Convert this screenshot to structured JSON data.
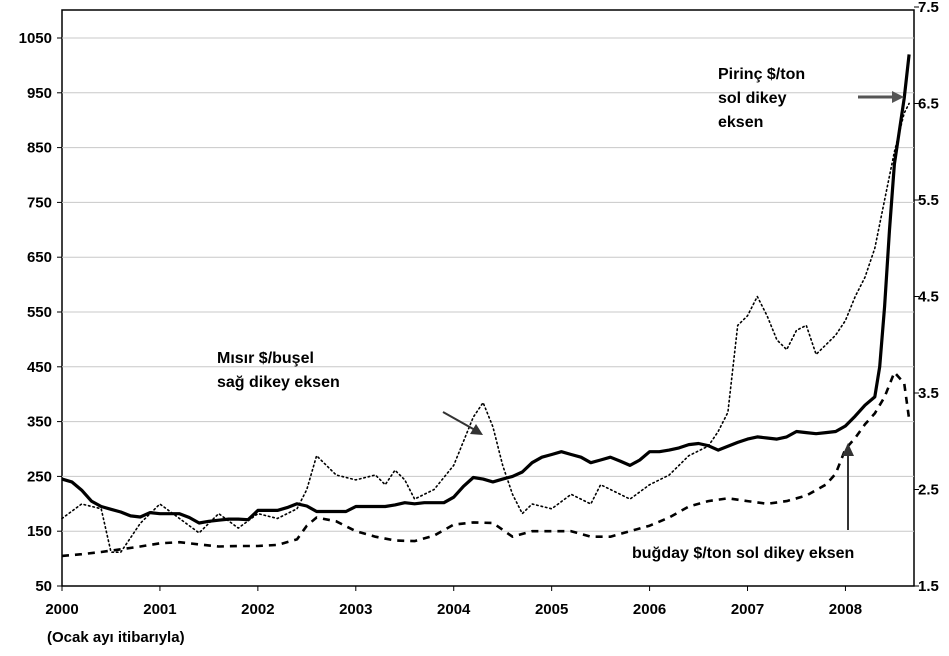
{
  "chart_data": {
    "type": "line",
    "x_axis": {
      "ticks": [
        "2000",
        "2001",
        "2002",
        "2003",
        "2004",
        "2005",
        "2006",
        "2007",
        "2008"
      ],
      "note": "(Ocak ayı itibarıyla)",
      "range": [
        2000.0,
        2008.7
      ]
    },
    "y_left": {
      "ticks": [
        50,
        150,
        250,
        350,
        450,
        550,
        650,
        750,
        850,
        950,
        1050
      ],
      "range": [
        50,
        1150
      ]
    },
    "y_right": {
      "ticks": [
        1.5,
        2.5,
        3.5,
        4.5,
        5.5,
        6.5,
        7.5
      ],
      "range": [
        1.5,
        7.5
      ]
    },
    "grid": true,
    "series": [
      {
        "key": "rice",
        "axis": "left",
        "style": "solid",
        "color": "#000000",
        "x": [
          2000.0,
          2000.1,
          2000.2,
          2000.3,
          2000.4,
          2000.5,
          2000.6,
          2000.7,
          2000.8,
          2000.9,
          2001.0,
          2001.1,
          2001.2,
          2001.3,
          2001.4,
          2001.5,
          2001.6,
          2001.7,
          2001.8,
          2001.9,
          2002.0,
          2002.1,
          2002.2,
          2002.3,
          2002.4,
          2002.5,
          2002.6,
          2002.7,
          2002.8,
          2002.9,
          2003.0,
          2003.1,
          2003.2,
          2003.3,
          2003.4,
          2003.5,
          2003.6,
          2003.7,
          2003.8,
          2003.9,
          2004.0,
          2004.1,
          2004.2,
          2004.3,
          2004.4,
          2004.5,
          2004.6,
          2004.7,
          2004.8,
          2004.9,
          2005.0,
          2005.1,
          2005.2,
          2005.3,
          2005.4,
          2005.5,
          2005.6,
          2005.7,
          2005.8,
          2005.9,
          2006.0,
          2006.1,
          2006.2,
          2006.3,
          2006.4,
          2006.5,
          2006.6,
          2006.7,
          2006.8,
          2006.9,
          2007.0,
          2007.1,
          2007.2,
          2007.3,
          2007.4,
          2007.5,
          2007.6,
          2007.7,
          2007.8,
          2007.9,
          2008.0,
          2008.1,
          2008.2,
          2008.3,
          2008.35,
          2008.4,
          2008.45,
          2008.5,
          2008.55,
          2008.6,
          2008.65
        ],
        "values": [
          245,
          240,
          225,
          205,
          195,
          190,
          185,
          178,
          176,
          184,
          182,
          182,
          182,
          175,
          165,
          168,
          170,
          172,
          172,
          171,
          188,
          188,
          188,
          193,
          200,
          196,
          186,
          186,
          186,
          186,
          195,
          195,
          195,
          195,
          198,
          202,
          200,
          202,
          202,
          202,
          212,
          232,
          248,
          245,
          240,
          245,
          250,
          258,
          275,
          285,
          290,
          295,
          290,
          285,
          275,
          280,
          285,
          278,
          270,
          280,
          295,
          295,
          298,
          302,
          308,
          310,
          306,
          298,
          305,
          312,
          318,
          322,
          320,
          318,
          322,
          332,
          330,
          328,
          330,
          332,
          342,
          360,
          380,
          395,
          450,
          560,
          700,
          820,
          880,
          940,
          1020
        ]
      },
      {
        "key": "wheat",
        "axis": "left",
        "style": "dashed",
        "color": "#000000",
        "x": [
          2000.0,
          2000.2,
          2000.4,
          2000.6,
          2000.8,
          2001.0,
          2001.2,
          2001.4,
          2001.6,
          2001.8,
          2002.0,
          2002.2,
          2002.4,
          2002.5,
          2002.6,
          2002.8,
          2003.0,
          2003.2,
          2003.4,
          2003.6,
          2003.8,
          2004.0,
          2004.2,
          2004.4,
          2004.6,
          2004.8,
          2005.0,
          2005.2,
          2005.4,
          2005.6,
          2005.8,
          2006.0,
          2006.2,
          2006.4,
          2006.6,
          2006.8,
          2007.0,
          2007.2,
          2007.4,
          2007.6,
          2007.8,
          2007.9,
          2008.0,
          2008.1,
          2008.2,
          2008.3,
          2008.4,
          2008.5,
          2008.6,
          2008.65
        ],
        "values": [
          105,
          108,
          112,
          117,
          122,
          128,
          130,
          126,
          122,
          123,
          123,
          125,
          135,
          160,
          175,
          168,
          150,
          140,
          133,
          132,
          142,
          162,
          166,
          165,
          140,
          150,
          150,
          150,
          140,
          140,
          150,
          160,
          175,
          195,
          205,
          210,
          205,
          200,
          205,
          215,
          235,
          255,
          300,
          320,
          345,
          365,
          395,
          440,
          420,
          355
        ]
      },
      {
        "key": "corn",
        "axis": "right",
        "style": "dotted",
        "color": "#000000",
        "x": [
          2000.0,
          2000.2,
          2000.4,
          2000.5,
          2000.6,
          2000.8,
          2001.0,
          2001.2,
          2001.4,
          2001.6,
          2001.8,
          2002.0,
          2002.2,
          2002.4,
          2002.5,
          2002.6,
          2002.7,
          2002.8,
          2003.0,
          2003.2,
          2003.3,
          2003.4,
          2003.5,
          2003.6,
          2003.7,
          2003.8,
          2004.0,
          2004.1,
          2004.2,
          2004.3,
          2004.4,
          2004.5,
          2004.6,
          2004.7,
          2004.8,
          2005.0,
          2005.2,
          2005.4,
          2005.5,
          2005.6,
          2005.8,
          2006.0,
          2006.2,
          2006.4,
          2006.6,
          2006.7,
          2006.8,
          2006.9,
          2007.0,
          2007.1,
          2007.2,
          2007.3,
          2007.4,
          2007.5,
          2007.6,
          2007.7,
          2007.8,
          2007.9,
          2008.0,
          2008.1,
          2008.2,
          2008.3,
          2008.4,
          2008.5,
          2008.6,
          2008.65
        ],
        "values": [
          2.2,
          2.35,
          2.3,
          1.85,
          1.85,
          2.15,
          2.35,
          2.2,
          2.05,
          2.25,
          2.1,
          2.25,
          2.2,
          2.3,
          2.5,
          2.85,
          2.75,
          2.65,
          2.6,
          2.65,
          2.55,
          2.7,
          2.6,
          2.4,
          2.45,
          2.5,
          2.75,
          3.0,
          3.25,
          3.4,
          3.15,
          2.75,
          2.45,
          2.25,
          2.35,
          2.3,
          2.45,
          2.35,
          2.55,
          2.5,
          2.4,
          2.55,
          2.65,
          2.85,
          2.95,
          3.1,
          3.3,
          4.2,
          4.3,
          4.5,
          4.3,
          4.05,
          3.95,
          4.15,
          4.2,
          3.9,
          4.0,
          4.1,
          4.25,
          4.5,
          4.7,
          5.0,
          5.5,
          6.0,
          6.4,
          6.5
        ]
      }
    ],
    "annotations": {
      "rice_label": [
        "Pirinç $/ton",
        "sol dikey",
        "eksen"
      ],
      "corn_label": [
        "Mısır $/buşel",
        "sağ dikey eksen"
      ],
      "wheat_label": "buğday $/ton sol dikey eksen"
    }
  }
}
